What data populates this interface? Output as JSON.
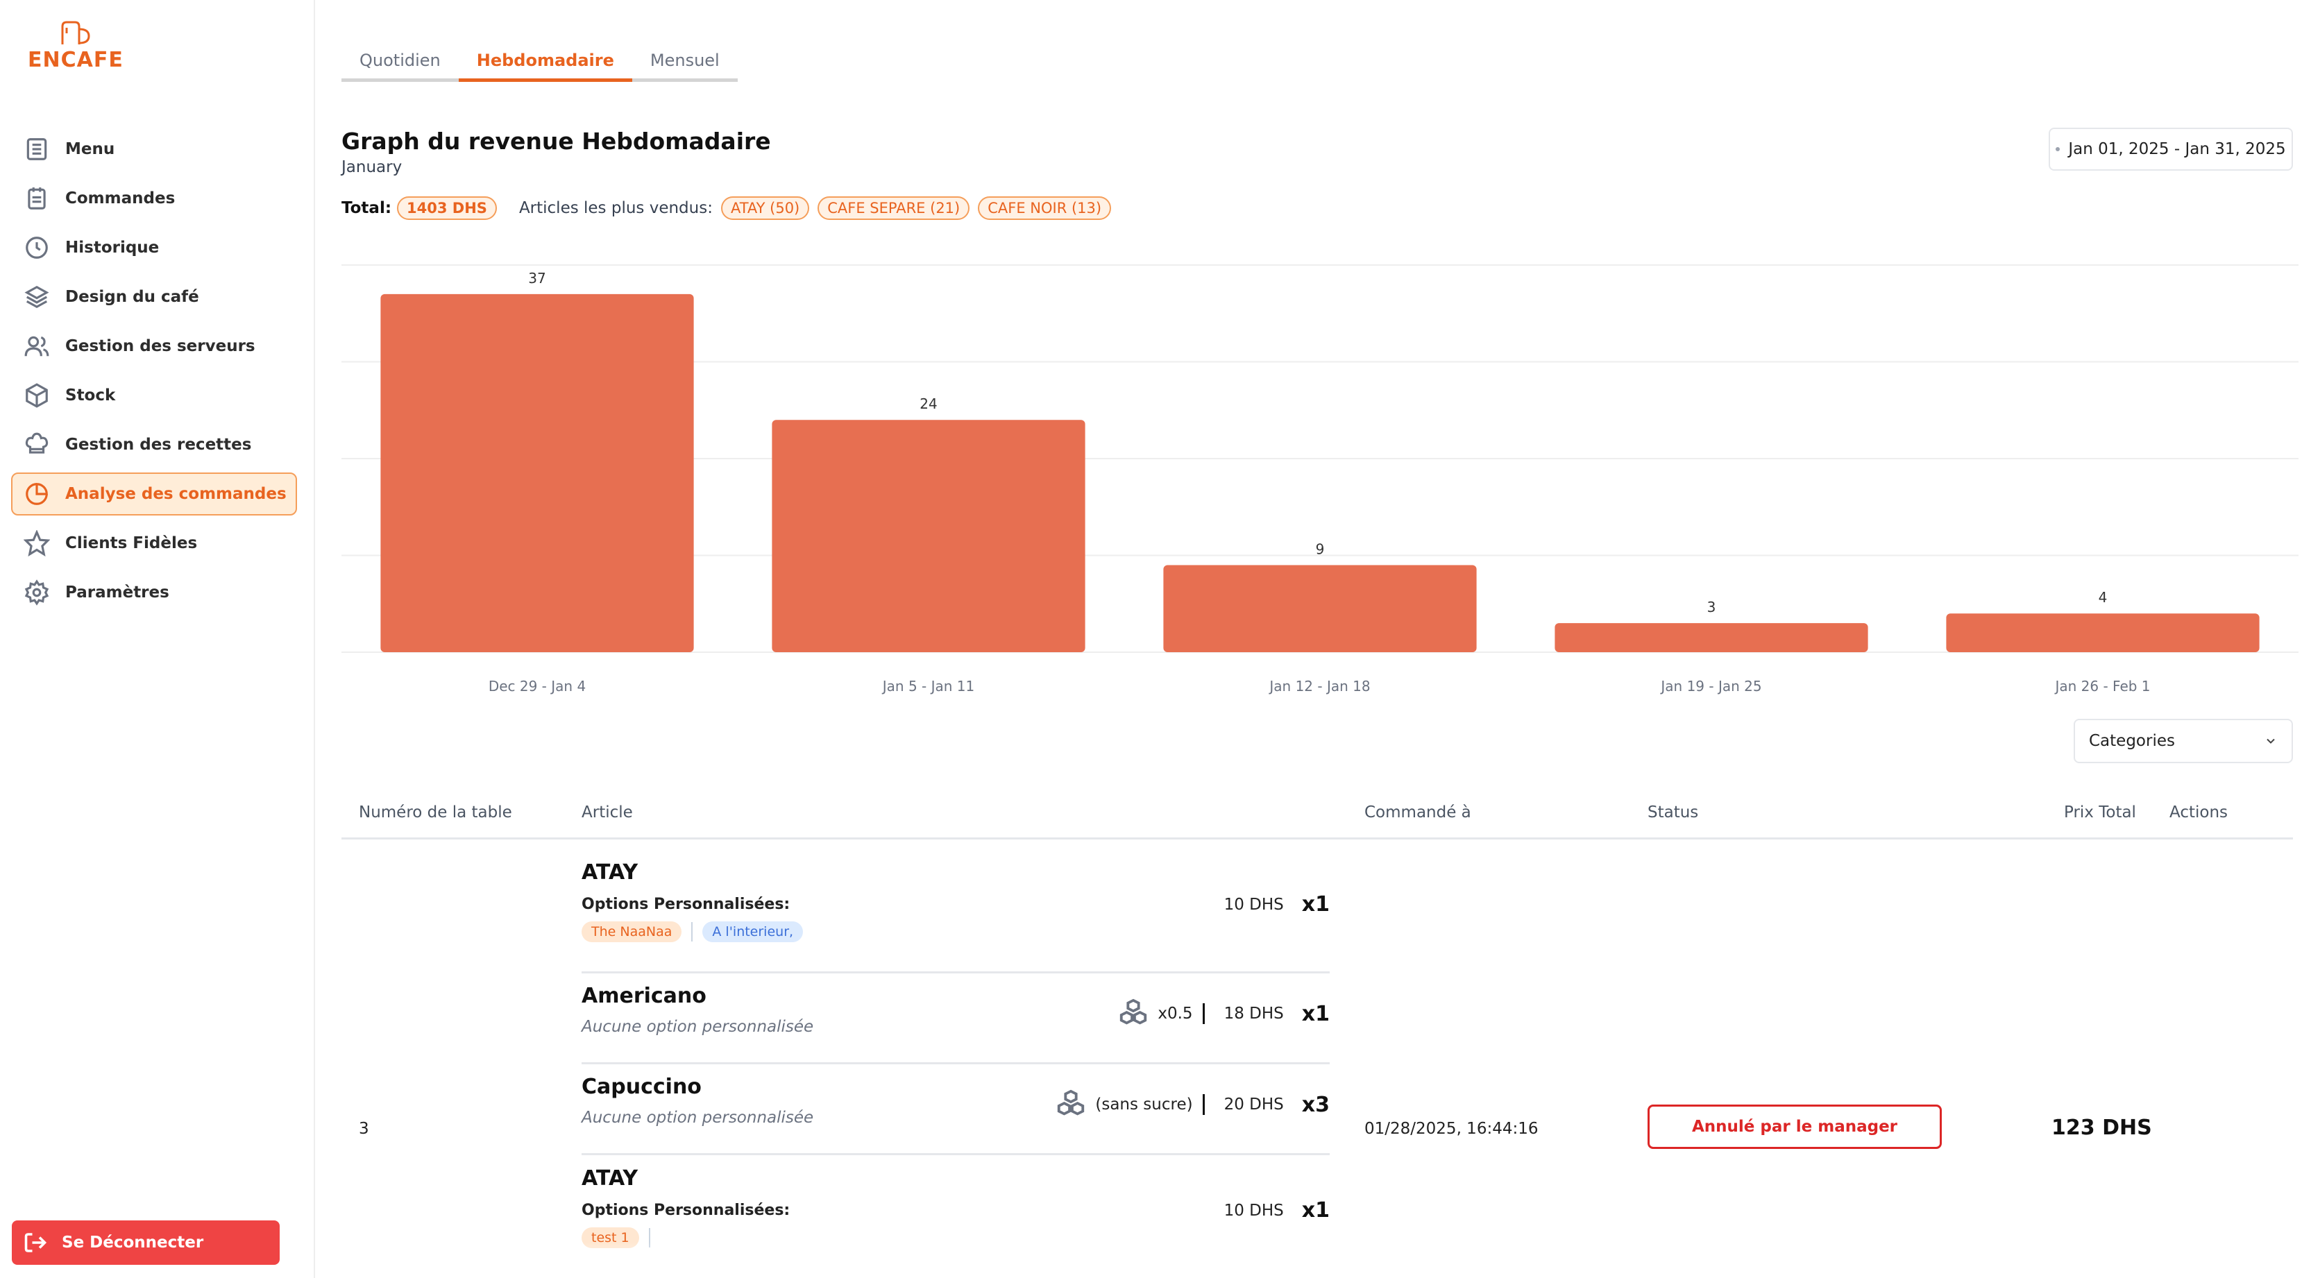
{
  "brand": {
    "logo_text": "ENCAFE",
    "accent": "#e8631f"
  },
  "sidebar": {
    "items": [
      {
        "label": "Menu",
        "icon": "menu-list-icon"
      },
      {
        "label": "Commandes",
        "icon": "clipboard-icon"
      },
      {
        "label": "Historique",
        "icon": "clock-icon"
      },
      {
        "label": "Design du café",
        "icon": "layers-icon"
      },
      {
        "label": "Gestion des serveurs",
        "icon": "users-icon"
      },
      {
        "label": "Stock",
        "icon": "box-icon"
      },
      {
        "label": "Gestion des recettes",
        "icon": "chef-hat-icon"
      },
      {
        "label": "Analyse des commandes",
        "icon": "pie-chart-icon",
        "active": true
      },
      {
        "label": "Clients Fidèles",
        "icon": "star-icon"
      },
      {
        "label": "Paramètres",
        "icon": "gear-icon"
      }
    ],
    "logout_label": "Se Déconnecter"
  },
  "tabs": [
    "Quotidien",
    "Hebdomadaire",
    "Mensuel"
  ],
  "active_tab": "Hebdomadaire",
  "graph": {
    "title": "Graph du revenue Hebdomadaire",
    "subtitle": "January",
    "date_range": "Jan 01, 2025 - Jan 31, 2025",
    "total_label": "Total:",
    "total_value": "1403 DHS",
    "best_sellers_label": "Articles les plus vendus:",
    "best_sellers": [
      "ATAY (50)",
      "CAFE SEPARE (21)",
      "CAFE NOIR (13)"
    ]
  },
  "chart_data": {
    "type": "bar",
    "categories": [
      "Dec 29 - Jan 4",
      "Jan 5 - Jan 11",
      "Jan 12 - Jan 18",
      "Jan 19 - Jan 25",
      "Jan 26 - Feb 1"
    ],
    "values": [
      37,
      24,
      9,
      3,
      4
    ],
    "title": "",
    "xlabel": "",
    "ylabel": "",
    "ylim": [
      0,
      40
    ],
    "grid": true,
    "bar_color": "#e76f51"
  },
  "filter": {
    "categories_label": "Categories"
  },
  "table": {
    "headers": [
      "Numéro de la table",
      "Article",
      "Commandé à",
      "Status",
      "Prix Total",
      "Actions"
    ],
    "row": {
      "table_number": "3",
      "ordered_at": "01/28/2025, 16:44:16",
      "status": "Annulé par le manager",
      "total": "123 DHS",
      "items": [
        {
          "name": "ATAY",
          "options_label": "Options Personnalisées:",
          "tags": [
            "The NaaNaa",
            "A l'interieur,"
          ],
          "price": "10 DHS",
          "qty": "x1"
        },
        {
          "name": "Americano",
          "no_options": "Aucune option personnalisée",
          "sugar": "x0.5",
          "price": "18 DHS",
          "qty": "x1"
        },
        {
          "name": "Capuccino",
          "no_options": "Aucune option personnalisée",
          "sugar": "(sans sucre)",
          "price": "20 DHS",
          "qty": "x3"
        },
        {
          "name": "ATAY",
          "options_label": "Options Personnalisées:",
          "tags": [
            "test 1"
          ],
          "price": "10 DHS",
          "qty": "x1"
        }
      ]
    }
  }
}
